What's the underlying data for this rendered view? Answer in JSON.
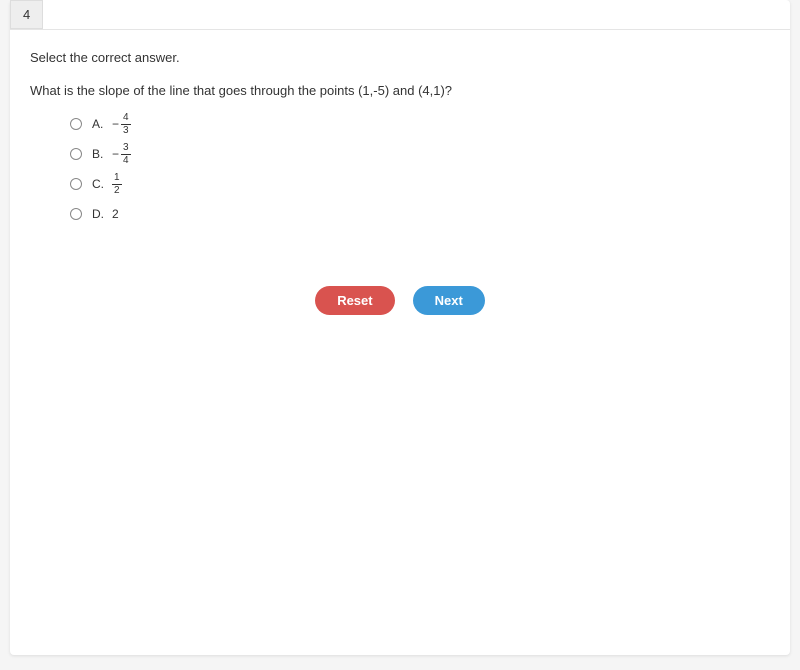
{
  "question_number": "4",
  "instruction": "Select the correct answer.",
  "question": "What is the slope of the line that goes through the points (1,-5) and (4,1)?",
  "options": [
    {
      "letter": "A.",
      "negative": true,
      "numerator": "4",
      "denominator": "3",
      "is_fraction": true
    },
    {
      "letter": "B.",
      "negative": true,
      "numerator": "3",
      "denominator": "4",
      "is_fraction": true
    },
    {
      "letter": "C.",
      "negative": false,
      "numerator": "1",
      "denominator": "2",
      "is_fraction": true
    },
    {
      "letter": "D.",
      "negative": false,
      "value": "2",
      "is_fraction": false
    }
  ],
  "buttons": {
    "reset_label": "Reset",
    "next_label": "Next"
  },
  "colors": {
    "reset_bg": "#d9534f",
    "next_bg": "#3b99d8",
    "card_bg": "#ffffff",
    "page_bg": "#f5f5f5",
    "text": "#333333",
    "border": "#e5e5e5",
    "number_bg": "#eeeeee"
  }
}
